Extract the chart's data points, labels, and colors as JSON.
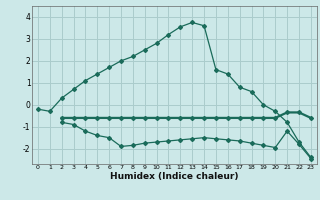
{
  "xlabel": "Humidex (Indice chaleur)",
  "background_color": "#cce8e8",
  "grid_color": "#aacccc",
  "line_color": "#1a6b5a",
  "xlim": [
    -0.5,
    23.5
  ],
  "ylim": [
    -2.7,
    4.5
  ],
  "xticks": [
    0,
    1,
    2,
    3,
    4,
    5,
    6,
    7,
    8,
    9,
    10,
    11,
    12,
    13,
    14,
    15,
    16,
    17,
    18,
    19,
    20,
    21,
    22,
    23
  ],
  "yticks": [
    -2,
    -1,
    0,
    1,
    2,
    3,
    4
  ],
  "line1_x": [
    0,
    1,
    2,
    3,
    4,
    5,
    6,
    7,
    8,
    9,
    10,
    11,
    12,
    13,
    14,
    15,
    16,
    17,
    18,
    19,
    20,
    21,
    22,
    23
  ],
  "line1_y": [
    -0.2,
    -0.3,
    0.3,
    0.7,
    1.1,
    1.4,
    1.7,
    2.0,
    2.2,
    2.5,
    2.8,
    3.2,
    3.55,
    3.75,
    3.6,
    1.6,
    1.4,
    0.8,
    0.6,
    0.0,
    -0.3,
    -0.8,
    -1.7,
    -2.4
  ],
  "line2_x": [
    2,
    3,
    4,
    5,
    6,
    7,
    8,
    9,
    10,
    11,
    12,
    13,
    14,
    15,
    16,
    17,
    18,
    19,
    20,
    21,
    22,
    23
  ],
  "line2_y": [
    -0.6,
    -0.6,
    -0.6,
    -0.6,
    -0.6,
    -0.6,
    -0.6,
    -0.6,
    -0.6,
    -0.6,
    -0.6,
    -0.6,
    -0.6,
    -0.6,
    -0.6,
    -0.6,
    -0.6,
    -0.6,
    -0.6,
    -0.35,
    -0.35,
    -0.6
  ],
  "line3_x": [
    2,
    3,
    4,
    5,
    6,
    7,
    8,
    9,
    10,
    11,
    12,
    13,
    14,
    15,
    16,
    17,
    18,
    19,
    20,
    21,
    22,
    23
  ],
  "line3_y": [
    -0.8,
    -0.9,
    -1.2,
    -1.4,
    -1.5,
    -1.9,
    -1.85,
    -1.75,
    -1.7,
    -1.65,
    -1.6,
    -1.55,
    -1.5,
    -1.55,
    -1.6,
    -1.65,
    -1.75,
    -1.85,
    -1.95,
    -1.2,
    -1.8,
    -2.45
  ],
  "marker": "D",
  "markersize": 2.0,
  "linewidth": 0.9
}
